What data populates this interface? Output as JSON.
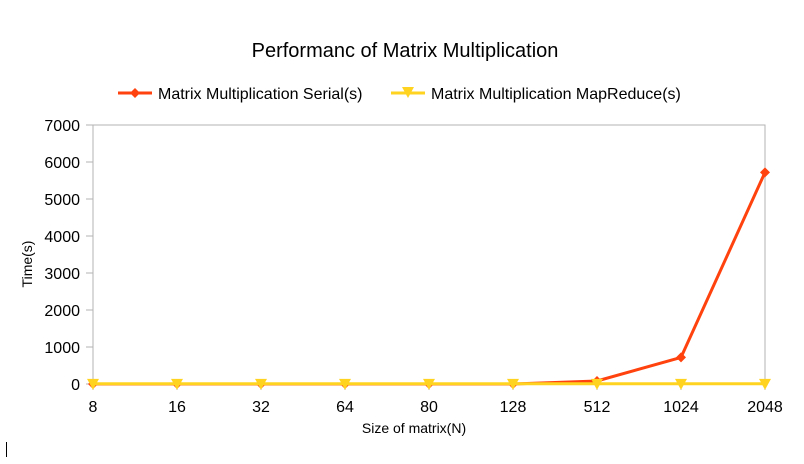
{
  "chart_data": {
    "type": "line",
    "title": "Performanc of Matrix Multiplication",
    "xlabel": "Size of matrix(N)",
    "ylabel": "Time(s)",
    "categories": [
      "8",
      "16",
      "32",
      "64",
      "80",
      "128",
      "512",
      "1024",
      "2048"
    ],
    "ylim": [
      0,
      7000
    ],
    "yticks": [
      0,
      1000,
      2000,
      3000,
      4000,
      5000,
      6000,
      7000
    ],
    "grid": false,
    "legend_position": "top",
    "series": [
      {
        "name": "Matrix Multiplication Serial(s)",
        "color": "#ff420e",
        "marker": "diamond-icon",
        "values": [
          0,
          0,
          0,
          0,
          0,
          0,
          80,
          720,
          5720
        ]
      },
      {
        "name": "Matrix Multiplication MapReduce(s)",
        "color": "#ffd320",
        "marker": "triangle-down-icon",
        "values": [
          5,
          5,
          5,
          5,
          5,
          5,
          5,
          5,
          5
        ]
      }
    ]
  }
}
